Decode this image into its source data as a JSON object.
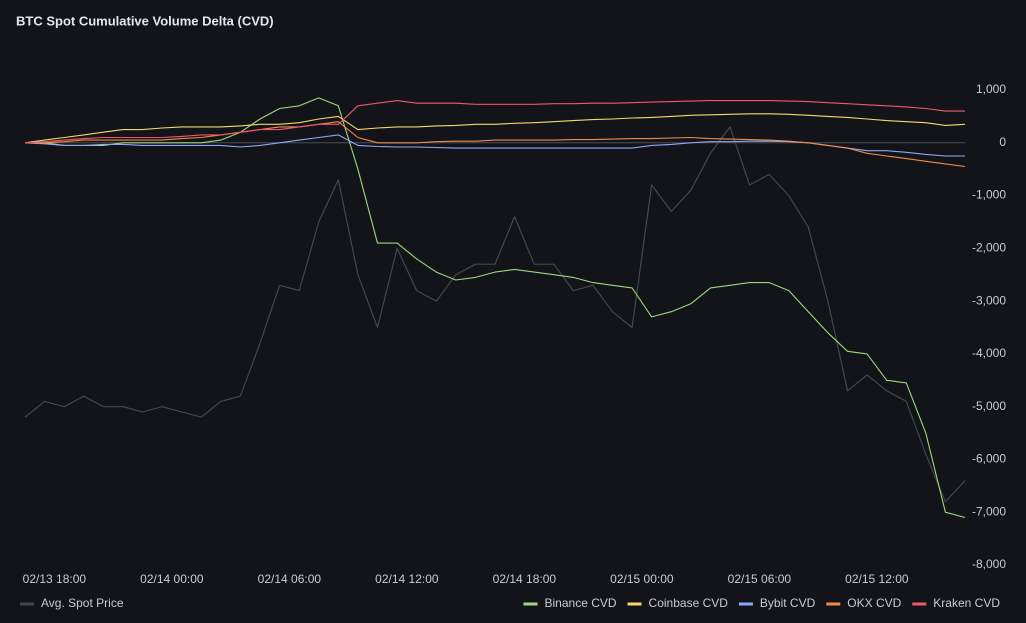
{
  "chart_data": {
    "type": "line",
    "title": "BTC Spot Cumulative Volume Delta (CVD)",
    "x": [
      "02/13 16:30",
      "02/13 17:30",
      "02/13 18:30",
      "02/13 19:30",
      "02/13 20:30",
      "02/13 21:30",
      "02/13 22:30",
      "02/13 23:30",
      "02/14 00:30",
      "02/14 01:30",
      "02/14 02:30",
      "02/14 03:30",
      "02/14 04:30",
      "02/14 05:30",
      "02/14 06:30",
      "02/14 07:30",
      "02/14 08:30",
      "02/14 09:30",
      "02/14 10:30",
      "02/14 11:30",
      "02/14 12:30",
      "02/14 13:30",
      "02/14 14:30",
      "02/14 15:30",
      "02/14 16:30",
      "02/14 17:30",
      "02/14 18:30",
      "02/14 19:30",
      "02/14 20:30",
      "02/14 21:30",
      "02/14 22:30",
      "02/14 23:30",
      "02/15 00:30",
      "02/15 01:30",
      "02/15 02:30",
      "02/15 03:30",
      "02/15 04:30",
      "02/15 05:30",
      "02/15 06:30",
      "02/15 07:30",
      "02/15 08:30",
      "02/15 09:30",
      "02/15 10:30",
      "02/15 11:30",
      "02/15 12:30",
      "02/15 13:30",
      "02/15 14:30",
      "02/15 15:30",
      "02/15 16:30"
    ],
    "xlim": [
      "02/13 16:30",
      "02/15 16:30"
    ],
    "xticks": [
      "02/13 18:00",
      "02/14 00:00",
      "02/14 06:00",
      "02/14 12:00",
      "02/14 18:00",
      "02/15 00:00",
      "02/15 06:00",
      "02/15 12:00"
    ],
    "ylim": [
      -8000,
      1000
    ],
    "yticks": [
      {
        "value": 1000,
        "label": "1,000"
      },
      0,
      {
        "value": -1000,
        "label": "-1,000"
      },
      {
        "value": -2000,
        "label": "-2,000"
      },
      {
        "value": -3000,
        "label": "-3,000"
      },
      {
        "value": -4000,
        "label": "-4,000"
      },
      {
        "value": -5000,
        "label": "-5,000"
      },
      {
        "value": -6000,
        "label": "-6,000"
      },
      {
        "value": -7000,
        "label": "-7,000"
      },
      {
        "value": -8000,
        "label": "-8,000"
      }
    ],
    "series": [
      {
        "name": "Avg. Spot Price",
        "color": "#44474d",
        "values": [
          -5200,
          -4900,
          -5000,
          -4800,
          -5000,
          -5000,
          -5100,
          -5000,
          -5100,
          -5200,
          -4900,
          -4800,
          -3800,
          -2700,
          -2800,
          -1500,
          -700,
          -2500,
          -3500,
          -2000,
          -2800,
          -3000,
          -2500,
          -2300,
          -2300,
          -1400,
          -2300,
          -2300,
          -2800,
          -2700,
          -3200,
          -3500,
          -800,
          -1300,
          -900,
          -200,
          300,
          -800,
          -600,
          -1000,
          -1600,
          -3000,
          -4700,
          -4400,
          -4700,
          -4900,
          -5900,
          -6800,
          -6400
        ]
      },
      {
        "name": "Binance CVD",
        "color": "#9ed67e",
        "values": [
          0,
          0,
          -50,
          -50,
          -50,
          0,
          0,
          0,
          0,
          0,
          50,
          200,
          450,
          650,
          700,
          850,
          700,
          -500,
          -1900,
          -1900,
          -2200,
          -2450,
          -2600,
          -2550,
          -2450,
          -2400,
          -2450,
          -2500,
          -2550,
          -2650,
          -2700,
          -2750,
          -3300,
          -3200,
          -3050,
          -2750,
          -2700,
          -2650,
          -2650,
          -2800,
          -3200,
          -3600,
          -3950,
          -4000,
          -4500,
          -4550,
          -5500,
          -7000,
          -7100
        ]
      },
      {
        "name": "Coinbase CVD",
        "color": "#f5d76e",
        "values": [
          0,
          50,
          100,
          150,
          200,
          250,
          250,
          280,
          300,
          300,
          300,
          320,
          350,
          350,
          380,
          450,
          500,
          250,
          280,
          300,
          300,
          320,
          330,
          350,
          350,
          370,
          380,
          400,
          420,
          440,
          450,
          470,
          480,
          500,
          520,
          530,
          540,
          550,
          550,
          540,
          520,
          500,
          480,
          450,
          420,
          400,
          380,
          330,
          350
        ]
      },
      {
        "name": "Bybit CVD",
        "color": "#8fa8f5",
        "values": [
          0,
          -20,
          -50,
          -50,
          -30,
          -30,
          -50,
          -50,
          -50,
          -50,
          -50,
          -80,
          -50,
          0,
          50,
          100,
          150,
          -50,
          -70,
          -80,
          -80,
          -90,
          -100,
          -100,
          -100,
          -100,
          -100,
          -100,
          -100,
          -100,
          -100,
          -100,
          -50,
          -30,
          0,
          20,
          20,
          30,
          30,
          20,
          0,
          -50,
          -100,
          -150,
          -150,
          -180,
          -220,
          -250,
          -250
        ]
      },
      {
        "name": "OKX CVD",
        "color": "#f08a4b",
        "values": [
          0,
          0,
          20,
          50,
          50,
          50,
          50,
          50,
          80,
          100,
          150,
          200,
          250,
          300,
          300,
          350,
          400,
          100,
          0,
          0,
          0,
          20,
          30,
          30,
          50,
          50,
          50,
          50,
          60,
          60,
          70,
          80,
          80,
          90,
          100,
          80,
          70,
          60,
          50,
          30,
          0,
          -50,
          -100,
          -200,
          -250,
          -300,
          -350,
          -400,
          -450
        ]
      },
      {
        "name": "Kraken CVD",
        "color": "#f0566a",
        "values": [
          0,
          20,
          50,
          80,
          100,
          100,
          100,
          100,
          120,
          150,
          150,
          200,
          250,
          250,
          300,
          350,
          350,
          700,
          750,
          800,
          750,
          750,
          750,
          730,
          730,
          730,
          730,
          740,
          740,
          750,
          750,
          760,
          770,
          780,
          790,
          800,
          800,
          800,
          800,
          790,
          780,
          760,
          740,
          720,
          700,
          680,
          650,
          600,
          600
        ]
      }
    ],
    "zero_line": true
  }
}
